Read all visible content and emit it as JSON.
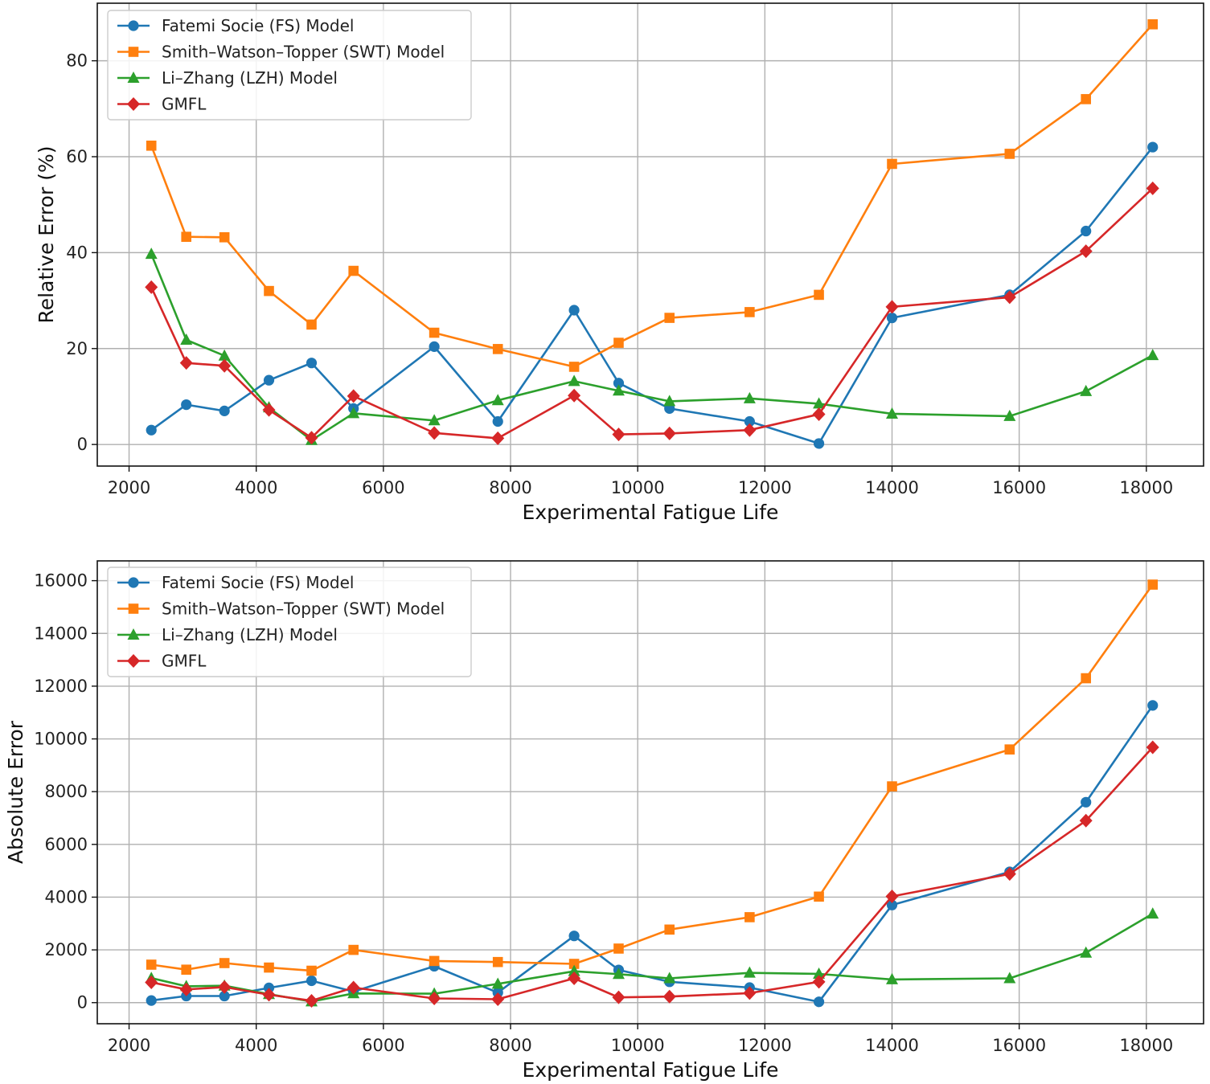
{
  "chart_data": [
    {
      "type": "line",
      "title": "",
      "xlabel": "Experimental Fatigue Life",
      "ylabel": "Relative Error (%)",
      "xlim": [
        1500,
        18900
      ],
      "ylim": [
        -4.5,
        92
      ],
      "xticks": [
        2000,
        4000,
        6000,
        8000,
        10000,
        12000,
        14000,
        16000,
        18000
      ],
      "yticks": [
        0,
        20,
        40,
        60,
        80
      ],
      "grid": true,
      "legend_position": "top-left",
      "x": [
        2350,
        2900,
        3500,
        4200,
        4870,
        5530,
        6800,
        7800,
        9000,
        9700,
        10500,
        11760,
        12850,
        14000,
        15850,
        17050,
        18100
      ],
      "series": [
        {
          "name": "Fatemi Socie (FS) Model",
          "color": "#1f77b4",
          "marker": "circle",
          "x": [
            2350,
            2900,
            3500,
            4200,
            4870,
            5530,
            6800,
            7800,
            9000,
            9700,
            10500,
            11760,
            12850,
            14000,
            15850,
            17050,
            18100
          ],
          "values": [
            3,
            8.3,
            7,
            13.4,
            17,
            7.5,
            20.4,
            4.8,
            28,
            12.8,
            7.5,
            4.8,
            0.2,
            26.4,
            31.2,
            44.5,
            62
          ]
        },
        {
          "name": "Smith–Watson–Topper (SWT) Model",
          "color": "#ff7f0e",
          "marker": "square",
          "x": [
            2350,
            2900,
            3500,
            4200,
            4870,
            5530,
            6800,
            7800,
            9000,
            9700,
            10500,
            11760,
            12850,
            14000,
            15850,
            17050,
            18100
          ],
          "values": [
            62.3,
            43.3,
            43.2,
            32,
            25,
            36.2,
            23.3,
            19.9,
            16.2,
            21.2,
            26.4,
            27.6,
            31.2,
            58.5,
            60.6,
            72,
            87.6
          ]
        },
        {
          "name": "Li–Zhang (LZH) Model",
          "color": "#2ca02c",
          "marker": "triangle",
          "x": [
            2350,
            2900,
            3500,
            4200,
            4870,
            5530,
            6800,
            7800,
            9000,
            9700,
            10500,
            11760,
            12850,
            14000,
            15850,
            17050,
            18100
          ],
          "values": [
            39.7,
            21.8,
            18.5,
            7.7,
            0.9,
            6.5,
            5,
            9.2,
            13.2,
            11.2,
            9,
            9.6,
            8.5,
            6.4,
            5.9,
            11.1,
            18.6
          ]
        },
        {
          "name": "GMFL",
          "color": "#d62728",
          "marker": "diamond",
          "x": [
            2350,
            2900,
            3500,
            4200,
            4870,
            5530,
            6800,
            7800,
            9000,
            9700,
            10500,
            11760,
            12850,
            14000,
            15850,
            17050,
            18100
          ],
          "values": [
            32.8,
            17,
            16.4,
            7.2,
            1.4,
            10.1,
            2.4,
            1.3,
            10.2,
            2.1,
            2.3,
            3,
            6.3,
            28.7,
            30.7,
            40.3,
            53.4
          ]
        }
      ]
    },
    {
      "type": "line",
      "title": "",
      "xlabel": "Experimental Fatigue Life",
      "ylabel": "Absolute Error",
      "xlim": [
        1500,
        18900
      ],
      "ylim": [
        -800,
        16750
      ],
      "xticks": [
        2000,
        4000,
        6000,
        8000,
        10000,
        12000,
        14000,
        16000,
        18000
      ],
      "yticks": [
        0,
        2000,
        4000,
        6000,
        8000,
        10000,
        12000,
        14000,
        16000
      ],
      "grid": true,
      "legend_position": "top-left",
      "x": [
        2350,
        2900,
        3500,
        4200,
        4870,
        5530,
        6800,
        7800,
        9000,
        9700,
        10500,
        11760,
        12850,
        14000,
        15850,
        17050,
        18100
      ],
      "series": [
        {
          "name": "Fatemi Socie (FS) Model",
          "color": "#1f77b4",
          "marker": "circle",
          "x": [
            2350,
            2900,
            3500,
            4200,
            4870,
            5530,
            6800,
            7800,
            9000,
            9700,
            10500,
            11760,
            12850,
            14000,
            15850,
            17050,
            18100
          ],
          "values": [
            80,
            250,
            250,
            560,
            830,
            420,
            1380,
            380,
            2530,
            1240,
            790,
            570,
            30,
            3700,
            4960,
            7600,
            11270
          ]
        },
        {
          "name": "Smith–Watson–Topper (SWT) Model",
          "color": "#ff7f0e",
          "marker": "square",
          "x": [
            2350,
            2900,
            3500,
            4200,
            4870,
            5530,
            6800,
            7800,
            9000,
            9700,
            10500,
            11760,
            12850,
            14000,
            15850,
            17050,
            18100
          ],
          "values": [
            1440,
            1250,
            1500,
            1330,
            1210,
            2000,
            1580,
            1540,
            1470,
            2050,
            2770,
            3240,
            4020,
            8200,
            9600,
            12300,
            15850
          ]
        },
        {
          "name": "Li–Zhang (LZH) Model",
          "color": "#2ca02c",
          "marker": "triangle",
          "x": [
            2350,
            2900,
            3500,
            4200,
            4870,
            5530,
            6800,
            7800,
            9000,
            9700,
            10500,
            11760,
            12850,
            14000,
            15850,
            17050,
            18100
          ],
          "values": [
            930,
            620,
            640,
            320,
            40,
            350,
            340,
            710,
            1190,
            1080,
            920,
            1130,
            1090,
            880,
            920,
            1890,
            3370
          ]
        },
        {
          "name": "GMFL",
          "color": "#d62728",
          "marker": "diamond",
          "x": [
            2350,
            2900,
            3500,
            4200,
            4870,
            5530,
            6800,
            7800,
            9000,
            9700,
            10500,
            11760,
            12850,
            14000,
            15850,
            17050,
            18100
          ],
          "values": [
            770,
            500,
            590,
            300,
            70,
            570,
            160,
            130,
            920,
            200,
            230,
            360,
            790,
            4030,
            4880,
            6900,
            9680
          ]
        }
      ]
    }
  ]
}
